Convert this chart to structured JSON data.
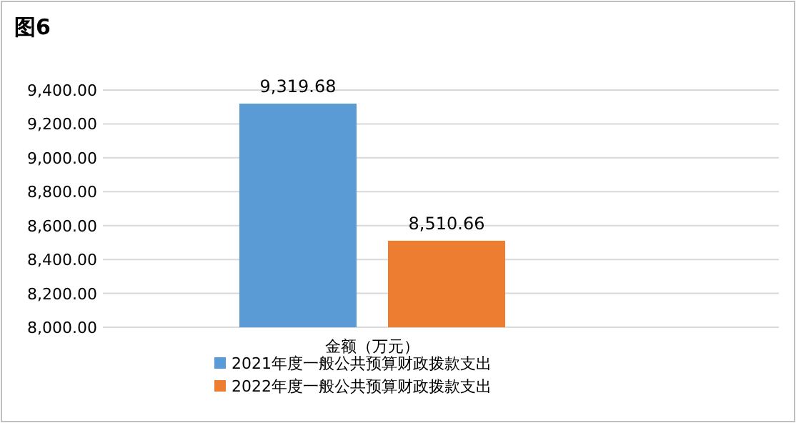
{
  "chart_data": {
    "type": "bar",
    "title": "图6",
    "categories": [
      "金额（万元）"
    ],
    "series": [
      {
        "name": "2021年度一般公共预算财政拨款支出",
        "color": "#5b9bd5",
        "values": [
          9319.68
        ],
        "value_labels": [
          "9,319.68"
        ]
      },
      {
        "name": "2022年度一般公共预算财政拨款支出",
        "color": "#ed7d31",
        "values": [
          8510.66
        ],
        "value_labels": [
          "8,510.66"
        ]
      }
    ],
    "ylim": [
      8000,
      9400
    ],
    "yticks": [
      {
        "value": 8000,
        "label": "8,000.00"
      },
      {
        "value": 8200,
        "label": "8,200.00"
      },
      {
        "value": 8400,
        "label": "8,400.00"
      },
      {
        "value": 8600,
        "label": "8,600.00"
      },
      {
        "value": 8800,
        "label": "8,800.00"
      },
      {
        "value": 9000,
        "label": "9,000.00"
      },
      {
        "value": 9200,
        "label": "9,200.00"
      },
      {
        "value": 9400,
        "label": "9,400.00"
      }
    ],
    "grid": "y",
    "legend": "bottom"
  }
}
